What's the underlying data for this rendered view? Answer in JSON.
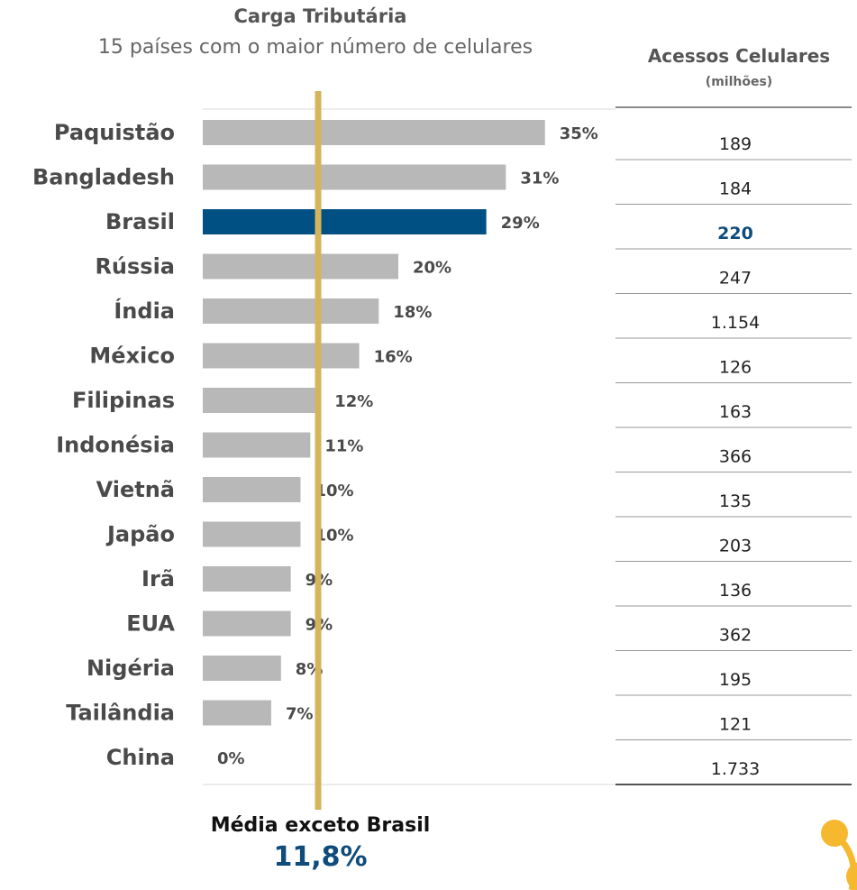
{
  "colors": {
    "bar": "#b8b8b9",
    "highlight": "#005083",
    "average_line": "#d4b55d",
    "text": "#4a4a4a",
    "access_highlight": "#0f4c7c"
  },
  "average": {
    "label": "Média exceto Brasil",
    "value_label": "11,8%",
    "value": 11.8
  },
  "logo": {
    "icon": "node-link-logo-icon",
    "color": "#f5b82e"
  },
  "chart_data": {
    "type": "bar",
    "orientation": "horizontal",
    "title": "Carga Tributária",
    "subtitle": "15 países com o maior número de celulares",
    "categories": [
      "Paquistão",
      "Bangladesh",
      "Brasil",
      "Rússia",
      "Índia",
      "México",
      "Filipinas",
      "Indonésia",
      "Vietnã",
      "Japão",
      "Irã",
      "EUA",
      "Nigéria",
      "Tailândia",
      "China"
    ],
    "values": [
      35,
      31,
      29,
      20,
      18,
      16,
      12,
      11,
      10,
      10,
      9,
      9,
      8,
      7,
      0
    ],
    "value_labels": [
      "35%",
      "31%",
      "29%",
      "20%",
      "18%",
      "16%",
      "12%",
      "11%",
      "10%",
      "10%",
      "9%",
      "9%",
      "8%",
      "7%",
      "0%"
    ],
    "highlight": "Brasil",
    "reference_line": 11.8,
    "table": {
      "header": "Acessos Celulares",
      "subheader": "(milhões)",
      "values": [
        "189",
        "184",
        "220",
        "247",
        "1.154",
        "126",
        "163",
        "366",
        "135",
        "203",
        "136",
        "362",
        "195",
        "121",
        "1.733"
      ]
    }
  }
}
